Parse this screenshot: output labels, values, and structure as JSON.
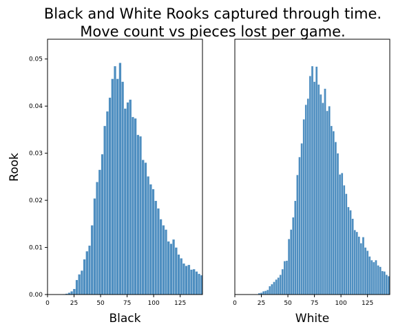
{
  "figure": {
    "title_line1": "Black and White Rooks captured through time.",
    "title_line2": "Move count vs pieces lost per game.",
    "ylabel": "Rook"
  },
  "chart_data": [
    {
      "type": "bar",
      "xlabel": "Black",
      "ylabel": "Rook",
      "xlim": [
        0,
        146
      ],
      "ylim": [
        0,
        0.0542
      ],
      "xticks": [
        0,
        25,
        50,
        75,
        100,
        125
      ],
      "yticks": [
        0.0,
        0.01,
        0.02,
        0.03,
        0.04,
        0.05
      ],
      "ytick_labels": [
        "0.00",
        "0.01",
        "0.02",
        "0.03",
        "0.04",
        "0.05"
      ],
      "bin_start": 0,
      "bin_width": 2.4,
      "bar_color": "#2f7ab5",
      "values": [
        0,
        0,
        0,
        0,
        0,
        0,
        0.0001,
        0.0002,
        0.0004,
        0.0007,
        0.0012,
        0.0031,
        0.0043,
        0.0051,
        0.0075,
        0.0092,
        0.0104,
        0.0147,
        0.0204,
        0.0239,
        0.0265,
        0.0298,
        0.0358,
        0.0389,
        0.0418,
        0.0458,
        0.0485,
        0.0458,
        0.0492,
        0.0452,
        0.0395,
        0.0408,
        0.0414,
        0.0377,
        0.0374,
        0.0339,
        0.0336,
        0.0286,
        0.028,
        0.0251,
        0.0234,
        0.0224,
        0.0199,
        0.0183,
        0.016,
        0.0147,
        0.0138,
        0.0113,
        0.0108,
        0.0117,
        0.01,
        0.0085,
        0.0077,
        0.0066,
        0.0061,
        0.0063,
        0.0053,
        0.0054,
        0.0049,
        0.0044,
        0.0041,
        0.0036,
        0.0027,
        0.0027,
        0.0026,
        0.0023,
        0.0022,
        0.002,
        0.0017,
        0.0017,
        0.0011,
        0.0013,
        0.001,
        0.001,
        0.0009,
        0.0007,
        0.0007,
        0.0007,
        0.0006,
        0.0005
      ]
    },
    {
      "type": "bar",
      "xlabel": "White",
      "xlim": [
        0,
        146
      ],
      "ylim": [
        0,
        0.0542
      ],
      "xticks": [
        0,
        25,
        50,
        75,
        100,
        125
      ],
      "bin_start": 0,
      "bin_width": 2.0,
      "bar_color": "#2f7ab5",
      "values": [
        0,
        0,
        0,
        0,
        0,
        0,
        0,
        0,
        0,
        0,
        0,
        0.0003,
        0.0004,
        0.0007,
        0.0008,
        0.001,
        0.0018,
        0.0022,
        0.0027,
        0.0032,
        0.0036,
        0.0042,
        0.0054,
        0.0071,
        0.0072,
        0.0118,
        0.0138,
        0.0164,
        0.0199,
        0.0254,
        0.0292,
        0.0321,
        0.0372,
        0.0403,
        0.0416,
        0.0464,
        0.0485,
        0.0452,
        0.0484,
        0.0446,
        0.0425,
        0.0407,
        0.0437,
        0.039,
        0.04,
        0.0358,
        0.0347,
        0.0324,
        0.03,
        0.0255,
        0.0258,
        0.0232,
        0.0214,
        0.0186,
        0.0179,
        0.0161,
        0.0137,
        0.0133,
        0.0123,
        0.0109,
        0.0122,
        0.01,
        0.0093,
        0.0081,
        0.0073,
        0.0069,
        0.0073,
        0.0062,
        0.0059,
        0.005,
        0.0049,
        0.0042,
        0.0039,
        0.0036,
        0.0031,
        0.0026,
        0.0024,
        0.0023,
        0.0022,
        0.0018,
        0.0014,
        0.0012,
        0.0012,
        0.001,
        0.0009,
        0.0007,
        0.0006,
        0.0006,
        0.0005,
        0.0004,
        0.0004,
        0.0004,
        0.0005,
        0.0009,
        0.0009,
        0.0006,
        0.0007,
        0.0004,
        0.0003,
        0.0003,
        0.0002,
        0.0002,
        0.0002,
        0.0002,
        0.0002,
        0.0002,
        0.0002,
        0.0002,
        0.0002,
        0.0002
      ]
    }
  ]
}
